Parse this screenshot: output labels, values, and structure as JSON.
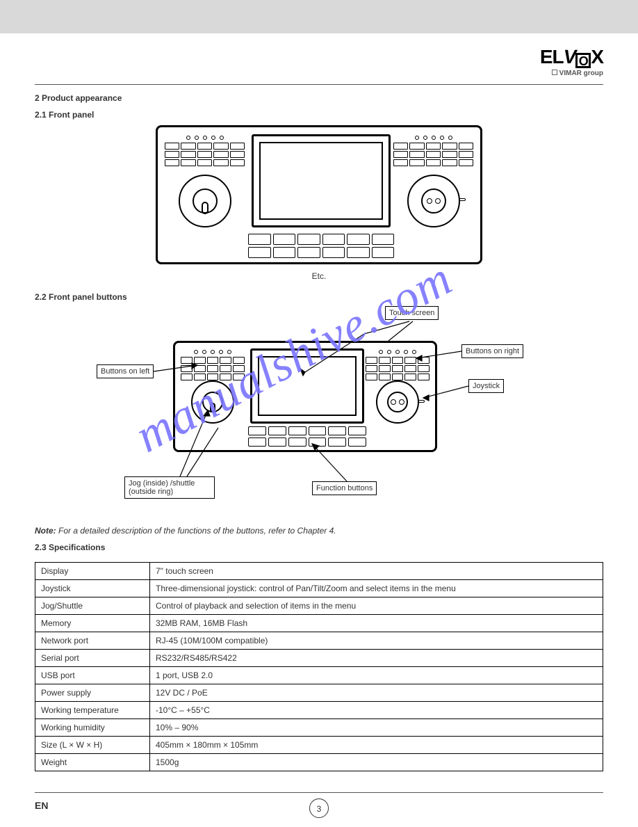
{
  "brand": {
    "name": "ELVOX",
    "sub": "VIMAR group"
  },
  "section": {
    "heading": "2 Product appearance"
  },
  "fig1": {
    "title": "2.1 Front panel",
    "caption": "Etc."
  },
  "fig2": {
    "title": "2.2 Front panel buttons",
    "labels": {
      "left_buttons": "Buttons on left",
      "jog": "Jog (inside) /shuttle\n(outside ring)",
      "touch": "Touch screen",
      "right_buttons": "Buttons on right",
      "joystick": "Joystick",
      "function": "Function buttons"
    }
  },
  "note": {
    "label": "Note:",
    "text": "For a detailed description of the functions of the buttons, refer to Chapter 4."
  },
  "spec": {
    "title": "2.3 Specifications",
    "rows": [
      [
        "Display",
        "7\" touch screen"
      ],
      [
        "Joystick",
        "Three-dimensional joystick: control of Pan/Tilt/Zoom and select items in the menu"
      ],
      [
        "Jog/Shuttle",
        "Control of playback and selection of items in the menu"
      ],
      [
        "Memory",
        "32MB RAM, 16MB Flash"
      ],
      [
        "Network port",
        "RJ-45 (10M/100M compatible)"
      ],
      [
        "Serial port",
        "RS232/RS485/RS422"
      ],
      [
        "USB port",
        "1 port, USB 2.0"
      ],
      [
        "Power supply",
        "12V DC / PoE"
      ],
      [
        "Working temperature",
        "-10°C – +55°C"
      ],
      [
        "Working humidity",
        "10% – 90%"
      ],
      [
        "Size (L × W × H)",
        "405mm × 180mm × 105mm"
      ],
      [
        "Weight",
        "1500g"
      ]
    ]
  },
  "watermark": "manualshive.com",
  "footer": {
    "lang": "EN",
    "page": "3"
  }
}
